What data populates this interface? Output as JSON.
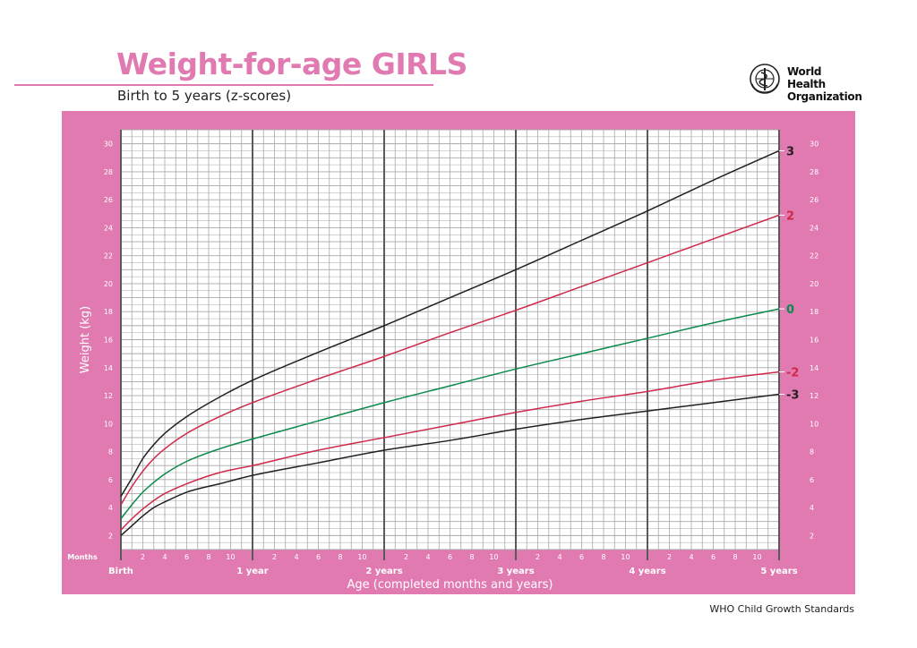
{
  "header": {
    "title": "Weight-for-age GIRLS",
    "subtitle": "Birth to 5 years (z-scores)"
  },
  "logo": {
    "text": "World Health\nOrganization"
  },
  "footer": {
    "text": "WHO Child Growth Standards"
  },
  "colors": {
    "panel": "#e07ab0",
    "title": "#e07ab0",
    "z3": "#231f20",
    "z2": "#d0284a",
    "z0": "#0a8a4c"
  },
  "chart_data": {
    "type": "line",
    "xlabel": "Age (completed months and years)",
    "ylabel": "Weight (kg)",
    "xlim": [
      0,
      60
    ],
    "ylim": [
      1,
      31
    ],
    "grid": true,
    "months_label": "Months",
    "y_ticks": [
      2,
      4,
      6,
      8,
      10,
      12,
      14,
      16,
      18,
      20,
      22,
      24,
      26,
      28,
      30
    ],
    "month_tick_labels": [
      "2",
      "4",
      "6",
      "8",
      "10"
    ],
    "year_labels": [
      {
        "month": 0,
        "label": "Birth"
      },
      {
        "month": 12,
        "label": "1 year"
      },
      {
        "month": 24,
        "label": "2 years"
      },
      {
        "month": 36,
        "label": "3 years"
      },
      {
        "month": 48,
        "label": "4 years"
      },
      {
        "month": 60,
        "label": "5 years"
      }
    ],
    "x": [
      0,
      1,
      2,
      3,
      4,
      6,
      9,
      12,
      18,
      24,
      30,
      36,
      42,
      48,
      54,
      60
    ],
    "series": [
      {
        "name": "3",
        "color": "#231f20",
        "values": [
          4.8,
          6.1,
          7.5,
          8.5,
          9.3,
          10.5,
          11.9,
          13.1,
          15.1,
          17.0,
          19.0,
          21.0,
          23.1,
          25.2,
          27.4,
          29.5
        ]
      },
      {
        "name": "2",
        "color": "#d0284a",
        "values": [
          4.2,
          5.5,
          6.6,
          7.5,
          8.2,
          9.3,
          10.5,
          11.5,
          13.2,
          14.8,
          16.5,
          18.1,
          19.8,
          21.5,
          23.2,
          24.9
        ]
      },
      {
        "name": "0",
        "color": "#0a8a4c",
        "values": [
          3.2,
          4.2,
          5.1,
          5.8,
          6.4,
          7.3,
          8.2,
          8.9,
          10.2,
          11.5,
          12.7,
          13.9,
          15.0,
          16.1,
          17.2,
          18.2
        ]
      },
      {
        "name": "-2",
        "color": "#d0284a",
        "values": [
          2.4,
          3.2,
          3.9,
          4.5,
          5.0,
          5.7,
          6.5,
          7.0,
          8.1,
          9.0,
          9.9,
          10.8,
          11.6,
          12.3,
          13.1,
          13.7
        ]
      },
      {
        "name": "-3",
        "color": "#231f20",
        "values": [
          2.0,
          2.7,
          3.4,
          4.0,
          4.4,
          5.1,
          5.7,
          6.3,
          7.2,
          8.1,
          8.8,
          9.6,
          10.3,
          10.9,
          11.5,
          12.1
        ]
      }
    ]
  }
}
